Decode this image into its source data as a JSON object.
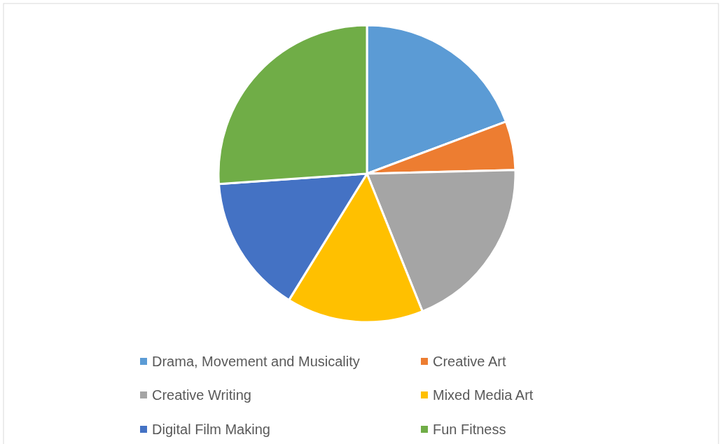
{
  "chart_data": {
    "type": "pie",
    "categories": [
      "Drama, Movement and Musicality",
      "Creative Art",
      "Creative Writing",
      "Mixed Media Art",
      "Digital Film Making",
      "Fun Fitness"
    ],
    "values": [
      19.3,
      5.3,
      19.3,
      14.9,
      15.1,
      26.1
    ],
    "colors": [
      "#5b9bd5",
      "#ed7d31",
      "#a5a5a5",
      "#ffc000",
      "#4472c4",
      "#70ad47"
    ],
    "legend": "bottom"
  }
}
